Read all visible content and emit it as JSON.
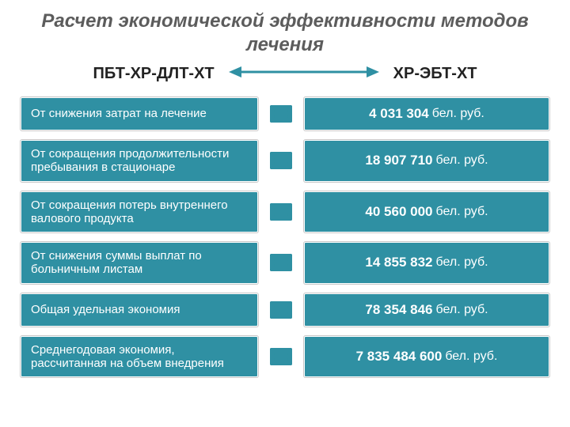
{
  "title": "Расчет экономической эффективности методов лечения",
  "compare": {
    "left": "ПБТ-ХР-ДЛТ-ХТ",
    "right": "ХР-ЭБТ-ХТ"
  },
  "colors": {
    "box_bg": "#2f90a3",
    "box_text": "#ffffff",
    "arrow": "#2f90a3",
    "title_color": "#5c5c5c"
  },
  "currency_unit": "бел. руб.",
  "rows": [
    {
      "label": "От снижения затрат на лечение",
      "value": "4 031 304"
    },
    {
      "label": "От сокращения продолжительности пребывания в стационаре",
      "value": "18 907 710"
    },
    {
      "label": "От сокращения потерь внутреннего валового продукта",
      "value": "40 560 000"
    },
    {
      "label": "От снижения суммы выплат по больничным листам",
      "value": "14 855 832"
    },
    {
      "label": "Общая удельная экономия",
      "value": "78 354 846"
    },
    {
      "label": "Среднегодовая экономия, рассчитанная на объем внедрения",
      "value": "7 835 484 600"
    }
  ]
}
